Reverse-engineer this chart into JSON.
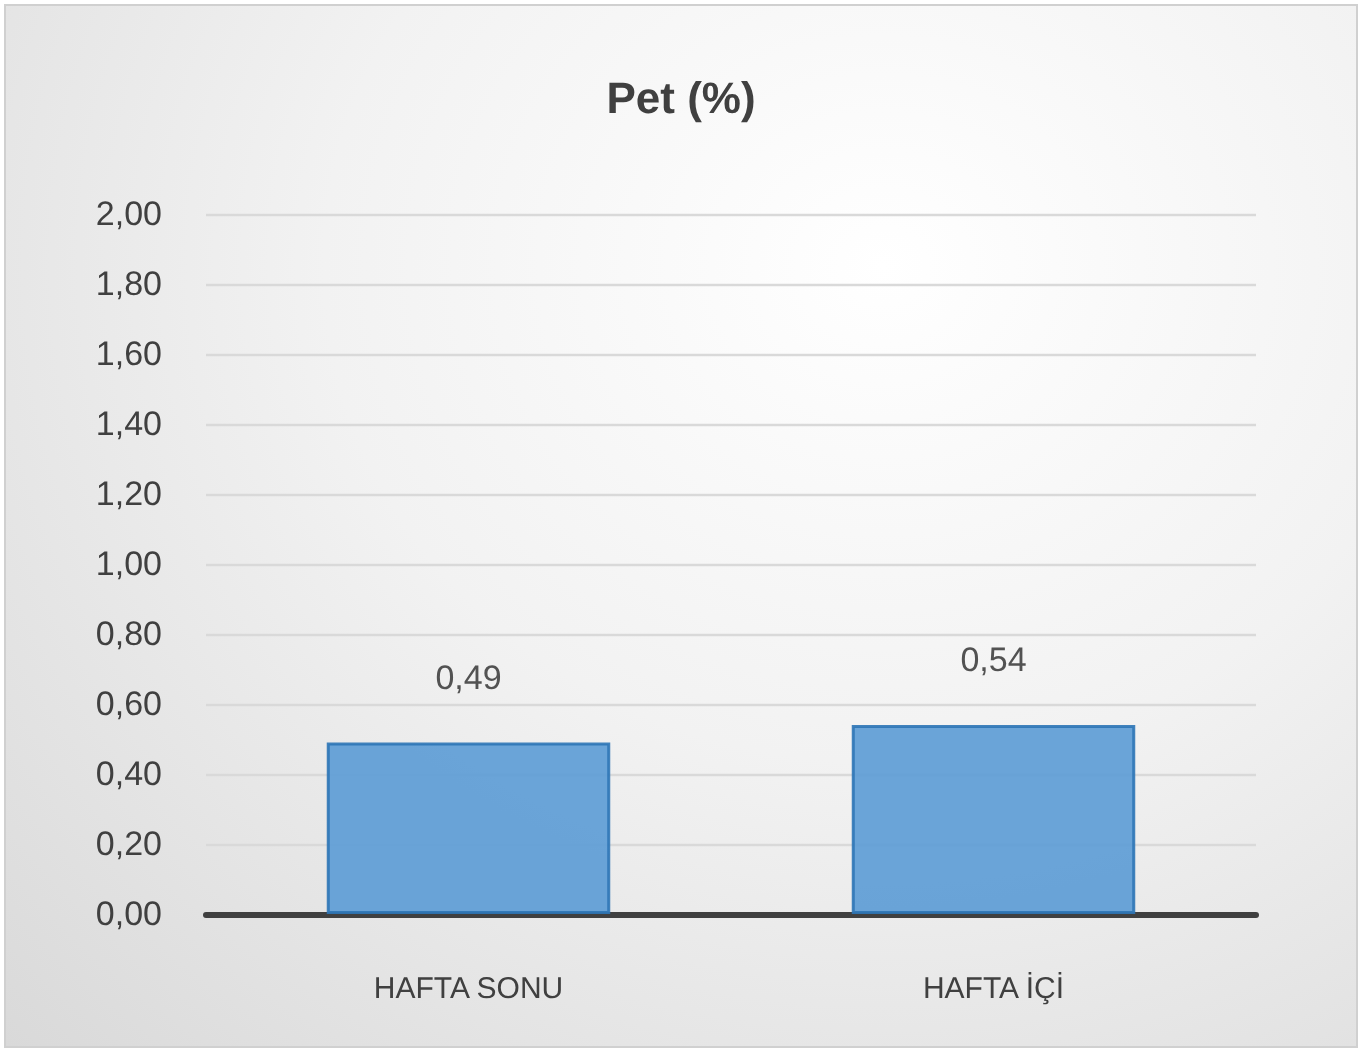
{
  "chart_data": {
    "type": "bar",
    "title": "Pet (%)",
    "categories": [
      "HAFTA SONU",
      "HAFTA İÇİ"
    ],
    "values": [
      0.49,
      0.54
    ],
    "color": "#5b9bd5",
    "value_labels": [
      "0,49",
      "0,54"
    ],
    "ylim": [
      0,
      2
    ],
    "yticks": [
      {
        "value": 0,
        "label": "0,00"
      },
      {
        "value": 0.2,
        "label": "0,20"
      },
      {
        "value": 0.4,
        "label": "0,40"
      },
      {
        "value": 0.6,
        "label": "0,60"
      },
      {
        "value": 0.8,
        "label": "0,80"
      },
      {
        "value": 1,
        "label": "1,00"
      },
      {
        "value": 1.2,
        "label": "1,20"
      },
      {
        "value": 1.4,
        "label": "1,40"
      },
      {
        "value": 1.6,
        "label": "1,60"
      },
      {
        "value": 1.8,
        "label": "1,80"
      },
      {
        "value": 2,
        "label": "2,00"
      }
    ],
    "grid": "y"
  }
}
